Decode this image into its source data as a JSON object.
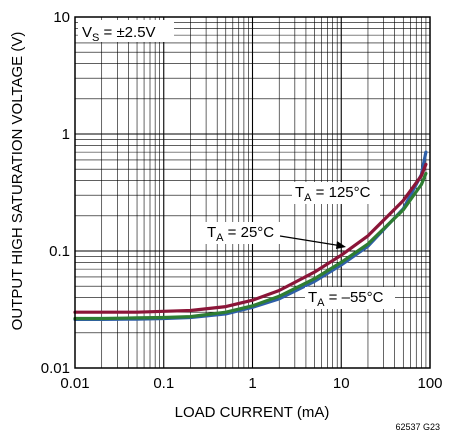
{
  "chart_data": {
    "type": "line",
    "xlabel": "LOAD CURRENT (mA)",
    "ylabel": "OUTPUT HIGH SATURATION VOLTAGE (V)",
    "x_scale": "log",
    "y_scale": "log",
    "xlim": [
      0.01,
      100
    ],
    "ylim": [
      0.01,
      10
    ],
    "x_ticks": [
      "0.01",
      "0.1",
      "1",
      "10",
      "100"
    ],
    "y_ticks": [
      "0.01",
      "0.1",
      "1",
      "10"
    ],
    "grid": true,
    "annotation_vs": {
      "main": "V",
      "sub": "S",
      "rest": " = ±2.5V"
    },
    "series": [
      {
        "label_main": "T",
        "label_sub": "A",
        "label_rest": " = 125°C",
        "color": "#8b1538",
        "x": [
          0.01,
          0.02,
          0.05,
          0.1,
          0.2,
          0.5,
          1,
          2,
          5,
          10,
          20,
          50,
          80,
          90
        ],
        "y": [
          0.03,
          0.03,
          0.03,
          0.0305,
          0.031,
          0.0335,
          0.038,
          0.046,
          0.066,
          0.092,
          0.135,
          0.27,
          0.44,
          0.55
        ]
      },
      {
        "label_main": "T",
        "label_sub": "A",
        "label_rest": " = 25°C",
        "color": "#2e7d32",
        "x": [
          0.01,
          0.02,
          0.05,
          0.1,
          0.2,
          0.5,
          1,
          2,
          5,
          10,
          20,
          50,
          80,
          90
        ],
        "y": [
          0.0265,
          0.0265,
          0.0268,
          0.027,
          0.0275,
          0.03,
          0.034,
          0.041,
          0.058,
          0.08,
          0.115,
          0.225,
          0.37,
          0.46
        ]
      },
      {
        "label_main": "T",
        "label_sub": "A",
        "label_rest": " = –55°C",
        "color": "#2e5fa8",
        "x": [
          0.01,
          0.02,
          0.05,
          0.1,
          0.2,
          0.5,
          1,
          2,
          5,
          10,
          20,
          50,
          80,
          90
        ],
        "y": [
          0.026,
          0.026,
          0.0262,
          0.0265,
          0.027,
          0.029,
          0.033,
          0.039,
          0.055,
          0.076,
          0.11,
          0.23,
          0.45,
          0.7
        ]
      }
    ],
    "figure_id": "62537 G23"
  }
}
